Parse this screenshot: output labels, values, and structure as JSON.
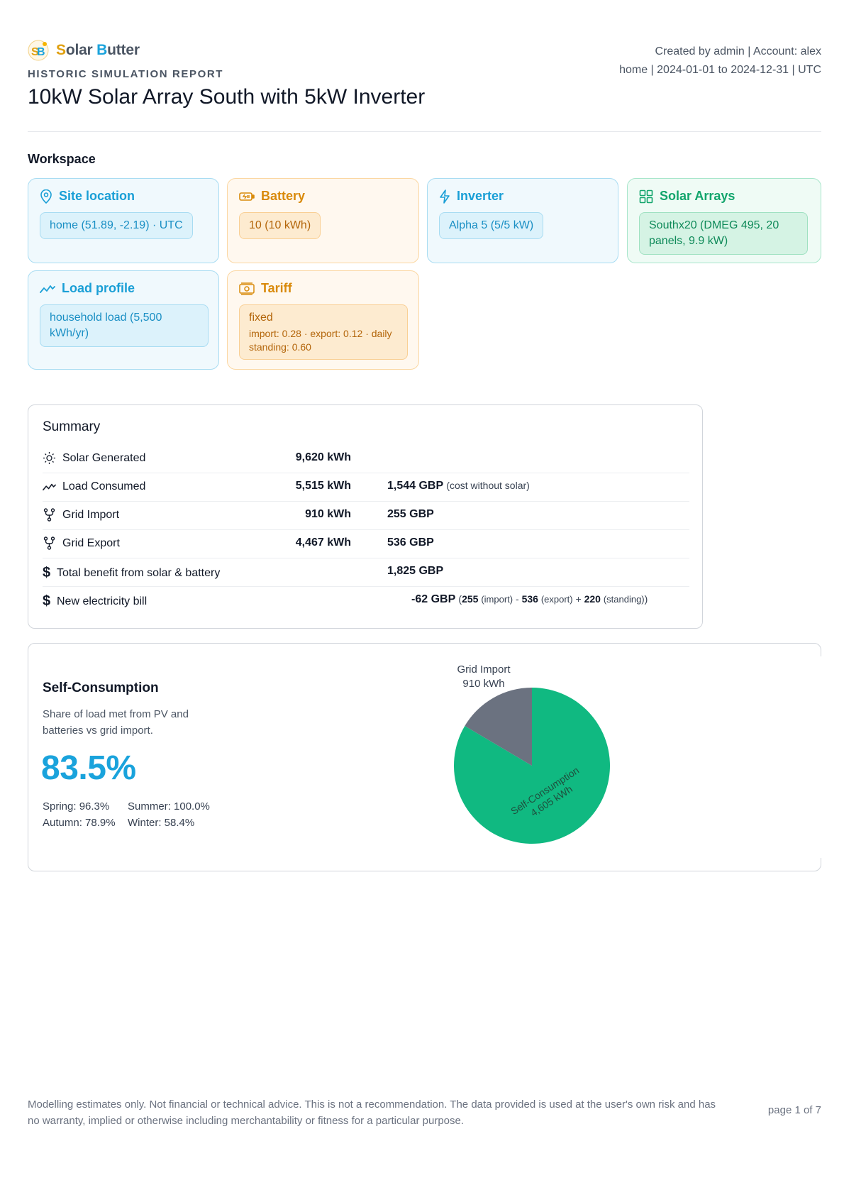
{
  "brand": {
    "first": "S",
    "first_rest": "olar ",
    "second": "B",
    "second_rest": "utter",
    "icon": "solar-butter-logo"
  },
  "report": {
    "kicker": "HISTORIC SIMULATION REPORT",
    "title": "10kW Solar Array South with 5kW Inverter"
  },
  "meta": {
    "line1": "Created by admin | Account: alex",
    "line2": "home | 2024-01-01 to 2024-12-31 | UTC"
  },
  "workspace": {
    "title": "Workspace",
    "site": {
      "label": "Site location",
      "icon": "map-pin-icon",
      "value": "home (51.89, -2.19) · UTC"
    },
    "battery": {
      "label": "Battery",
      "icon": "battery-icon",
      "value": "10 (10 kWh)"
    },
    "inverter": {
      "label": "Inverter",
      "icon": "lightning-icon",
      "value": "Alpha 5 (5/5 kW)"
    },
    "arrays": {
      "label": "Solar Arrays",
      "icon": "grid-icon",
      "value": "Southx20 (DMEG 495, 20 panels, 9.9 kW)"
    },
    "load": {
      "label": "Load profile",
      "icon": "trend-icon",
      "value": "household load (5,500 kWh/yr)"
    },
    "tariff": {
      "label": "Tariff",
      "icon": "banknote-icon",
      "value": "fixed",
      "detail": "import: 0.28 · export: 0.12 · daily standing: 0.60"
    }
  },
  "summary": {
    "title": "Summary",
    "rows": [
      {
        "label": "Solar Generated",
        "icon": "sun-icon",
        "energy": "9,620 kWh",
        "cost": ""
      },
      {
        "label": "Load Consumed",
        "icon": "trend-icon",
        "energy": "5,515 kWh",
        "cost": "1,544 GBP",
        "note": "(cost without solar)"
      },
      {
        "label": "Grid Import",
        "icon": "fork-icon",
        "energy": "910 kWh",
        "cost": "255 GBP"
      },
      {
        "label": "Grid Export",
        "icon": "fork-icon",
        "energy": "4,467 kWh",
        "cost": "536 GBP"
      },
      {
        "label": "Total benefit from solar & battery",
        "icon": "dollar-icon",
        "energy": "",
        "cost": "1,825 GBP"
      },
      {
        "label": "New electricity bill",
        "icon": "dollar-icon",
        "energy": "",
        "cost": "-62 GBP"
      }
    ],
    "bill_breakdown": {
      "open": "(",
      "import_value": "255",
      "import_label": "(import)",
      "minus": " - ",
      "export_value": "536",
      "export_label": "(export)",
      "plus": " + ",
      "standing_value": "220",
      "standing_label": "(standing)",
      "close": ")"
    }
  },
  "self_consumption": {
    "title": "Self-Consumption",
    "description": "Share of load met from PV and batteries vs grid import.",
    "percent": "83.5%",
    "seasons": {
      "spring": "Spring: 96.3%",
      "summer": "Summer: 100.0%",
      "autumn": "Autumn: 78.9%",
      "winter": "Winter: 58.4%"
    }
  },
  "chart_data": {
    "type": "pie",
    "categories": [
      "Grid Import",
      "Self-Consumption"
    ],
    "values": [
      910,
      4605
    ],
    "value_labels": [
      "910 kWh",
      "4,605 kWh"
    ],
    "colors": [
      "#6b7280",
      "#10b981"
    ]
  },
  "footer": {
    "disclaimer": "Modelling estimates only. Not financial or technical advice. This is not a recommendation. The data provided is used at the user's own risk and has no warranty, implied or otherwise including merchantability or fitness for a particular purpose.",
    "page": "page 1 of 7"
  }
}
